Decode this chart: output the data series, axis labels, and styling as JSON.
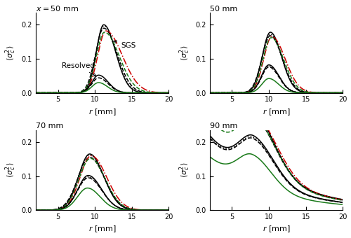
{
  "xlim": [
    2,
    20
  ],
  "ylim": [
    0,
    0.235
  ],
  "yticks": [
    0.0,
    0.1,
    0.2
  ],
  "xticks": [
    5,
    10,
    15,
    20
  ],
  "lw": 1.1
}
